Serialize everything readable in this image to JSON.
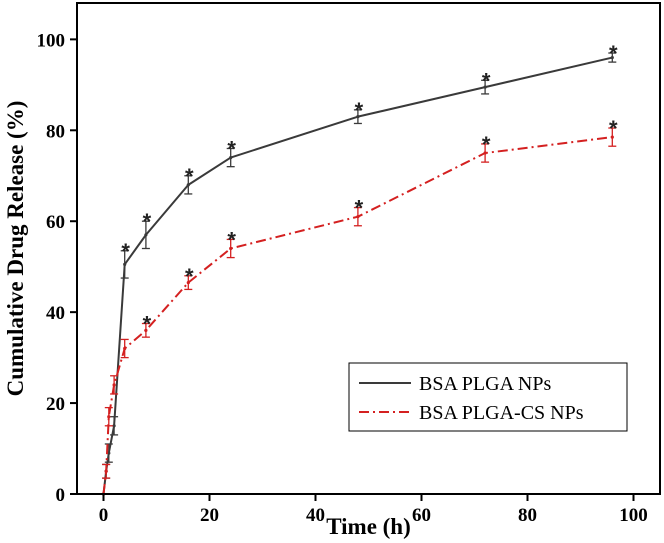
{
  "chart_data": {
    "type": "line",
    "title": "",
    "xlabel": "Time (h)",
    "ylabel": "Cumulative Drug Release (%)",
    "xlim": [
      -5,
      105
    ],
    "ylim": [
      0,
      108
    ],
    "xticks": [
      0,
      20,
      40,
      60,
      80,
      100
    ],
    "yticks": [
      0,
      20,
      40,
      60,
      80,
      100
    ],
    "xtick_labels": [
      "0",
      "20",
      "40",
      "60",
      "80",
      "100"
    ],
    "ytick_labels": [
      "0",
      "20",
      "40",
      "60",
      "80",
      "100"
    ],
    "grid": false,
    "legend_position": "bottom-right",
    "significance_marker": "*",
    "series": [
      {
        "name": "BSA PLGA NPs",
        "color": "#3a3a3a",
        "line_style": "solid",
        "x": [
          0,
          0.5,
          1,
          2,
          4,
          8,
          16,
          24,
          48,
          72,
          96
        ],
        "y": [
          0,
          5,
          9,
          15,
          50.5,
          57,
          68,
          74,
          83,
          89.5,
          96
        ],
        "error": [
          0,
          1.5,
          2,
          2,
          3,
          3,
          2,
          2,
          1.5,
          1.5,
          1
        ],
        "significant": [
          false,
          false,
          false,
          false,
          true,
          true,
          true,
          true,
          true,
          true,
          true
        ]
      },
      {
        "name": "BSA PLGA-CS NPs",
        "color": "#d42020",
        "line_style": "dashdot",
        "x": [
          0,
          0.5,
          1,
          2,
          4,
          8,
          16,
          24,
          48,
          72,
          96
        ],
        "y": [
          0,
          5,
          17,
          24,
          32,
          36,
          46.5,
          54,
          61,
          75,
          78.5
        ],
        "error": [
          0,
          1.5,
          2,
          2,
          2,
          1.5,
          1.5,
          2,
          2,
          2,
          2
        ],
        "significant": [
          false,
          false,
          false,
          false,
          false,
          true,
          true,
          true,
          true,
          true,
          true
        ]
      }
    ]
  }
}
